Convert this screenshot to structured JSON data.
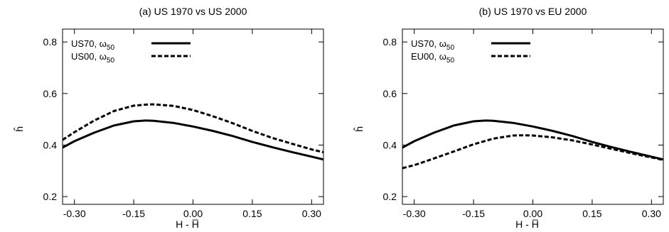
{
  "chart_data": [
    {
      "type": "line",
      "title": "(a) US 1970 vs US 2000",
      "xlabel": "H - H̅",
      "ylabel": "ĥ",
      "xlim": [
        -0.33,
        0.33
      ],
      "ylim": [
        0.17,
        0.85
      ],
      "xticks": [
        -0.3,
        -0.15,
        0.0,
        0.15,
        0.3
      ],
      "xtick_labels": [
        "-0.30",
        "-0.15",
        "0.00",
        "0.15",
        "0.30"
      ],
      "yticks": [
        0.2,
        0.4,
        0.6,
        0.8
      ],
      "ytick_labels": [
        "0.2",
        "0.4",
        "0.6",
        "0.8"
      ],
      "grid": false,
      "legend_position": "top-left",
      "series": [
        {
          "name": "US70, ω50",
          "name_base": "US70, ω",
          "name_sub": "50",
          "style": "solid",
          "x": [
            -0.33,
            -0.3,
            -0.25,
            -0.2,
            -0.15,
            -0.12,
            -0.1,
            -0.05,
            0.0,
            0.05,
            0.1,
            0.15,
            0.2,
            0.25,
            0.3,
            0.33
          ],
          "y": [
            0.39,
            0.415,
            0.448,
            0.476,
            0.492,
            0.495,
            0.494,
            0.486,
            0.472,
            0.455,
            0.435,
            0.412,
            0.392,
            0.373,
            0.355,
            0.344
          ]
        },
        {
          "name": "US00, ω50",
          "name_base": "US00, ω",
          "name_sub": "50",
          "style": "dashed",
          "x": [
            -0.33,
            -0.3,
            -0.25,
            -0.2,
            -0.15,
            -0.11,
            -0.1,
            -0.05,
            0.0,
            0.05,
            0.1,
            0.15,
            0.2,
            0.25,
            0.3,
            0.33
          ],
          "y": [
            0.42,
            0.45,
            0.495,
            0.532,
            0.553,
            0.558,
            0.558,
            0.552,
            0.536,
            0.512,
            0.485,
            0.455,
            0.428,
            0.405,
            0.383,
            0.372
          ]
        }
      ]
    },
    {
      "type": "line",
      "title": "(b) US 1970 vs EU 2000",
      "xlabel": "H - H̅",
      "ylabel": "ĥ",
      "xlim": [
        -0.33,
        0.33
      ],
      "ylim": [
        0.17,
        0.85
      ],
      "xticks": [
        -0.3,
        -0.15,
        0.0,
        0.15,
        0.3
      ],
      "xtick_labels": [
        "-0.30",
        "-0.15",
        "0.00",
        "0.15",
        "0.30"
      ],
      "yticks": [
        0.2,
        0.4,
        0.6,
        0.8
      ],
      "ytick_labels": [
        "0.2",
        "0.4",
        "0.6",
        "0.8"
      ],
      "grid": false,
      "legend_position": "top-left",
      "series": [
        {
          "name": "US70, ω50",
          "name_base": "US70, ω",
          "name_sub": "50",
          "style": "solid",
          "x": [
            -0.33,
            -0.3,
            -0.25,
            -0.2,
            -0.15,
            -0.12,
            -0.1,
            -0.05,
            0.0,
            0.05,
            0.1,
            0.15,
            0.2,
            0.25,
            0.3,
            0.33
          ],
          "y": [
            0.39,
            0.415,
            0.448,
            0.476,
            0.492,
            0.495,
            0.494,
            0.486,
            0.472,
            0.455,
            0.435,
            0.412,
            0.392,
            0.373,
            0.355,
            0.344
          ]
        },
        {
          "name": "EU00, ω50",
          "name_base": "EU00, ω",
          "name_sub": "50",
          "style": "dashed",
          "x": [
            -0.33,
            -0.3,
            -0.25,
            -0.2,
            -0.15,
            -0.1,
            -0.05,
            -0.03,
            0.0,
            0.05,
            0.1,
            0.15,
            0.2,
            0.25,
            0.3,
            0.33
          ],
          "y": [
            0.31,
            0.322,
            0.348,
            0.375,
            0.403,
            0.425,
            0.437,
            0.438,
            0.437,
            0.43,
            0.418,
            0.402,
            0.385,
            0.368,
            0.352,
            0.342
          ]
        }
      ]
    }
  ]
}
